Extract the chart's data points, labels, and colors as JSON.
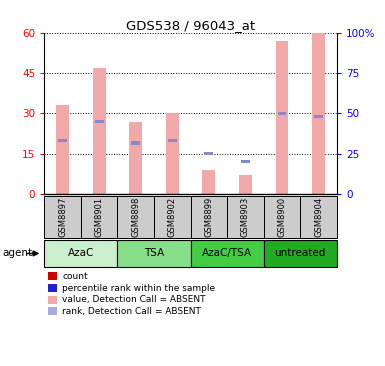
{
  "title": "GDS538 / 96043_at",
  "samples": [
    "GSM8897",
    "GSM8901",
    "GSM8898",
    "GSM8902",
    "GSM8899",
    "GSM8903",
    "GSM8900",
    "GSM8904"
  ],
  "pink_bar_heights": [
    33,
    47,
    27,
    30,
    9,
    7,
    57,
    60
  ],
  "blue_dot_heights": [
    20,
    27,
    19,
    20,
    15,
    12,
    30,
    29
  ],
  "ylim_left": [
    0,
    60
  ],
  "ylim_right": [
    0,
    100
  ],
  "yticks_left": [
    0,
    15,
    30,
    45,
    60
  ],
  "yticks_right": [
    0,
    25,
    50,
    75,
    100
  ],
  "ytick_labels_left": [
    "0",
    "15",
    "30",
    "45",
    "60"
  ],
  "ytick_labels_right": [
    "0",
    "25",
    "50",
    "75",
    "100%"
  ],
  "groups": [
    {
      "label": "AzaC",
      "indices": [
        0,
        1
      ],
      "color": "#ccf0cc"
    },
    {
      "label": "TSA",
      "indices": [
        2,
        3
      ],
      "color": "#88dd88"
    },
    {
      "label": "AzaC/TSA",
      "indices": [
        4,
        5
      ],
      "color": "#44cc44"
    },
    {
      "label": "untreated",
      "indices": [
        6,
        7
      ],
      "color": "#22aa22"
    }
  ],
  "pink_color": "#f0a8a8",
  "blue_color": "#8888cc",
  "bar_width": 0.35,
  "legend_items": [
    {
      "color": "#cc0000",
      "label": "count"
    },
    {
      "color": "#2222cc",
      "label": "percentile rank within the sample"
    },
    {
      "color": "#f0a8a8",
      "label": "value, Detection Call = ABSENT"
    },
    {
      "color": "#aaaadd",
      "label": "rank, Detection Call = ABSENT"
    }
  ],
  "sample_bg_color": "#cccccc",
  "agent_label": "agent"
}
